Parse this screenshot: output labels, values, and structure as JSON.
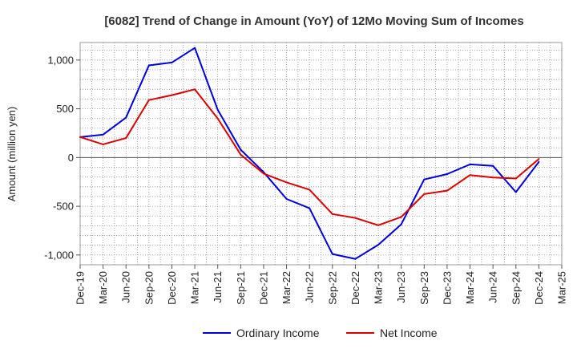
{
  "chart_data": {
    "type": "line",
    "title": "[6082]  Trend of Change in Amount (YoY) of 12Mo Moving Sum of Incomes",
    "xlabel": "",
    "ylabel": "Amount (million yen)",
    "ylim": [
      -1100,
      1180
    ],
    "yticks": [
      1000,
      500,
      0,
      -500,
      -1000
    ],
    "ytick_labels": [
      "1,000",
      "500",
      "0",
      "-500",
      "-1,000"
    ],
    "categories": [
      "Dec-19",
      "Mar-20",
      "Jun-20",
      "Sep-20",
      "Dec-20",
      "Mar-21",
      "Jun-21",
      "Sep-21",
      "Dec-21",
      "Mar-22",
      "Jun-22",
      "Sep-22",
      "Dec-22",
      "Mar-23",
      "Jun-23",
      "Sep-23",
      "Dec-23",
      "Mar-24",
      "Jun-24",
      "Sep-24",
      "Dec-24",
      "Mar-25"
    ],
    "grid": true,
    "legend_position": "bottom-center",
    "series": [
      {
        "name": "Ordinary Income",
        "color": "#0000dd",
        "values": [
          210,
          235,
          410,
          945,
          975,
          1125,
          490,
          80,
          -150,
          -425,
          -520,
          -990,
          -1040,
          -895,
          -685,
          -225,
          -170,
          -70,
          -85,
          -355,
          -45,
          null
        ]
      },
      {
        "name": "Net Income",
        "color": "#dd0000",
        "values": [
          210,
          135,
          200,
          590,
          640,
          700,
          400,
          30,
          -165,
          -255,
          -330,
          -580,
          -620,
          -695,
          -610,
          -375,
          -340,
          -180,
          -205,
          -215,
          -15,
          null
        ]
      }
    ]
  }
}
